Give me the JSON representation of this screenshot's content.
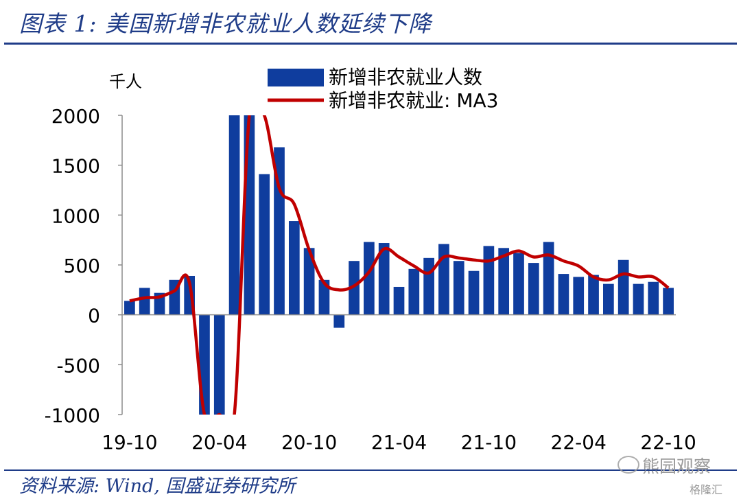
{
  "header": {
    "title": "图表 1:  美国新增非农就业人数延续下降"
  },
  "footer": {
    "source": "资料来源:  Wind,  国盛证券研究所"
  },
  "watermark": {
    "text": "熊园观察",
    "sub": "格隆汇"
  },
  "colors": {
    "bar": "#0f3d9e",
    "line": "#c00000",
    "axis": "#8c8c8c",
    "title": "#1f3c88"
  },
  "chart_data": {
    "type": "bar",
    "unit_label": "千人",
    "legend_position": "top-center",
    "ylim": [
      -1000,
      2000
    ],
    "yticks": [
      -1000,
      -500,
      0,
      500,
      1000,
      1500,
      2000
    ],
    "ytick_labels": [
      "-1000",
      "-500",
      "0",
      "500",
      "1000",
      "1500",
      "2000"
    ],
    "xtick_labels": [
      "19-10",
      "20-04",
      "20-10",
      "21-04",
      "21-10",
      "22-04",
      "22-10"
    ],
    "xtick_indices": [
      0,
      6,
      12,
      18,
      24,
      30,
      36
    ],
    "categories": [
      "19-10",
      "19-11",
      "19-12",
      "20-01",
      "20-02",
      "20-03",
      "20-04",
      "20-05",
      "20-06",
      "20-07",
      "20-08",
      "20-09",
      "20-10",
      "20-11",
      "20-12",
      "21-01",
      "21-02",
      "21-03",
      "21-04",
      "21-05",
      "21-06",
      "21-07",
      "21-08",
      "21-09",
      "21-10",
      "21-11",
      "21-12",
      "22-01",
      "22-02",
      "22-03",
      "22-04",
      "22-05",
      "22-06",
      "22-07",
      "22-08",
      "22-09",
      "22-10"
    ],
    "series": [
      {
        "name": "新增非农就业人数",
        "kind": "bar",
        "values": [
          140,
          270,
          220,
          350,
          390,
          -1000,
          -1000,
          2000,
          2000,
          1410,
          1680,
          940,
          670,
          350,
          -130,
          540,
          730,
          720,
          280,
          460,
          570,
          710,
          540,
          440,
          690,
          670,
          620,
          520,
          730,
          410,
          380,
          400,
          310,
          550,
          310,
          330,
          270
        ]
      },
      {
        "name": "新增非农就业:  MA3",
        "kind": "line",
        "values": [
          140,
          170,
          180,
          240,
          320,
          -1000,
          -1000,
          -1000,
          2000,
          2000,
          1270,
          1110,
          650,
          320,
          250,
          290,
          430,
          660,
          580,
          490,
          420,
          580,
          570,
          550,
          540,
          590,
          640,
          580,
          600,
          540,
          490,
          380,
          350,
          410,
          380,
          380,
          270
        ]
      }
    ]
  }
}
